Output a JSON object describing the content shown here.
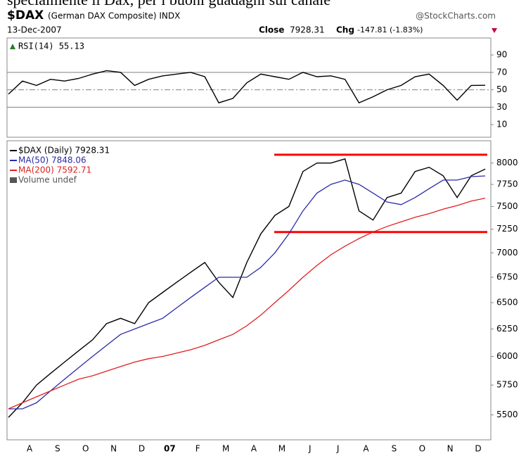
{
  "header": {
    "caption": "specialmente il Dax, per i buoni guadagni sul canale",
    "symbol": "$DAX",
    "name": "(German DAX Composite) INDX",
    "source": "@StockCharts.com",
    "date": "13-Dec-2007",
    "close_label": "Close",
    "close": "7928.31",
    "chg_label": "Chg",
    "chg": "-147.81 (-1.83%)"
  },
  "chart_data": [
    {
      "type": "line",
      "title": "RSI(14) 55.13",
      "series": [
        {
          "name": "RSI(14)",
          "color": "#000000",
          "values": [
            45,
            60,
            55,
            62,
            60,
            63,
            68,
            72,
            70,
            55,
            62,
            66,
            68,
            70,
            65,
            35,
            40,
            58,
            68,
            65,
            62,
            70,
            65,
            66,
            62,
            35,
            42,
            50,
            55,
            65,
            68,
            55,
            38,
            55,
            55.13
          ]
        }
      ],
      "ylim": [
        -4.5,
        103
      ],
      "yticks": [
        10,
        30,
        50,
        70,
        90
      ],
      "reference_lines": [
        30,
        50,
        70
      ],
      "reference_color": "#808080"
    },
    {
      "type": "line",
      "log_scale": true,
      "categories": [
        null,
        "A",
        null,
        "S",
        null,
        "O",
        null,
        "N",
        null,
        "D",
        null,
        "07",
        null,
        "F",
        null,
        "M",
        null,
        "A",
        null,
        "M",
        null,
        "J",
        null,
        "J",
        null,
        "A",
        null,
        "S",
        null,
        "O",
        null,
        "N",
        null,
        "D",
        null
      ],
      "series": [
        {
          "name": "$DAX (Daily) 7928.31",
          "color": "#000000",
          "values": [
            5480,
            5600,
            5750,
            5850,
            5950,
            6050,
            6150,
            6300,
            6350,
            6300,
            6500,
            6600,
            6700,
            6800,
            6900,
            6700,
            6550,
            6900,
            7200,
            7400,
            7500,
            7900,
            8000,
            8000,
            8050,
            7450,
            7350,
            7600,
            7650,
            7900,
            7950,
            7850,
            7600,
            7850,
            7928.31
          ]
        },
        {
          "name": "MA(50) 7848.06",
          "color": "#2b2ba8",
          "values": [
            5550,
            5550,
            5600,
            5700,
            5800,
            5900,
            6000,
            6100,
            6200,
            6250,
            6300,
            6350,
            6450,
            6550,
            6650,
            6750,
            6750,
            6750,
            6850,
            7000,
            7200,
            7450,
            7650,
            7750,
            7800,
            7750,
            7650,
            7550,
            7520,
            7600,
            7700,
            7800,
            7800,
            7840,
            7848.06
          ]
        },
        {
          "name": "MA(200) 7592.71",
          "color": "#e02020",
          "values": [
            5550,
            5600,
            5650,
            5700,
            5750,
            5800,
            5830,
            5870,
            5910,
            5950,
            5980,
            6000,
            6030,
            6060,
            6100,
            6150,
            6200,
            6280,
            6380,
            6500,
            6620,
            6750,
            6870,
            6980,
            7070,
            7150,
            7220,
            7280,
            7330,
            7380,
            7420,
            7470,
            7510,
            7560,
            7592.71
          ]
        }
      ],
      "legend_extra": "Volume undef",
      "ylim": [
        5300,
        8270
      ],
      "yticks": [
        5500,
        5750,
        6000,
        6250,
        6500,
        6750,
        7000,
        7250,
        7500,
        7750,
        8000
      ],
      "reference_lines": [
        8100,
        7220
      ],
      "reference_color": "#ff0000"
    }
  ]
}
